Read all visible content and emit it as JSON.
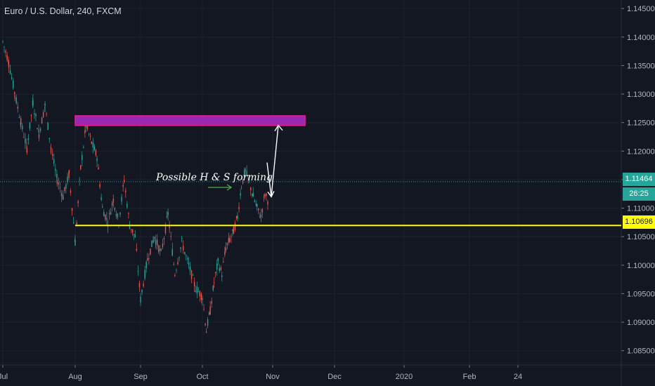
{
  "header": {
    "title": "Euro / U.S. Dollar, 240, FXCM"
  },
  "badges": {
    "current_price": "1.11464",
    "countdown": "26:25",
    "support_level": "1.10696"
  },
  "annotation": {
    "text": "Possible H & S forming"
  },
  "colors": {
    "background": "#131722",
    "grid": "#1e2230",
    "candle_up": "#26a69a",
    "candle_down": "#ef5350",
    "support_line": "#ffff00",
    "target_zone_fill": "#9c27b0",
    "target_zone_border": "#e91e8c",
    "price_line": "#26a69a",
    "arrow": "#ffffff",
    "small_arrow": "#4caf50"
  },
  "chart_data": {
    "type": "candlestick",
    "symbol": "EURUSD",
    "timeframe": "240",
    "exchange": "FXCM",
    "y_ticks": [
      "1.14500",
      "1.14000",
      "1.13500",
      "1.13000",
      "1.12500",
      "1.12000",
      "1.11500",
      "1.11000",
      "1.10500",
      "1.10000",
      "1.09500",
      "1.09000",
      "1.08500"
    ],
    "ylim": [
      1.0825,
      1.1465
    ],
    "x_ticks": [
      "Jul",
      "Aug",
      "Sep",
      "Oct",
      "Nov",
      "Dec",
      "2020",
      "Feb",
      "24"
    ],
    "price_path": [
      [
        "Jul",
        1.1392
      ],
      [
        "Jul",
        1.1355
      ],
      [
        "Jul",
        1.13
      ],
      [
        "Jul",
        1.125
      ],
      [
        "Jul",
        1.1205
      ],
      [
        "Jul",
        1.1285
      ],
      [
        "Jul",
        1.123
      ],
      [
        "Jul",
        1.128
      ],
      [
        "Jul",
        1.1205
      ],
      [
        "Jul",
        1.115
      ],
      [
        "Jul",
        1.112
      ],
      [
        "Jul",
        1.116
      ],
      [
        "Aug",
        1.104
      ],
      [
        "Aug",
        1.117
      ],
      [
        "Aug",
        1.1245
      ],
      [
        "Aug",
        1.1215
      ],
      [
        "Aug",
        1.119
      ],
      [
        "Aug",
        1.11
      ],
      [
        "Aug",
        1.1075
      ],
      [
        "Aug",
        1.1115
      ],
      [
        "Aug",
        1.1075
      ],
      [
        "Aug",
        1.115
      ],
      [
        "Aug",
        1.107
      ],
      [
        "Aug",
        1.105
      ],
      [
        "Sep",
        1.094
      ],
      [
        "Sep",
        1.101
      ],
      [
        "Sep",
        1.105
      ],
      [
        "Sep",
        1.102
      ],
      [
        "Sep",
        1.109
      ],
      [
        "Sep",
        1.0985
      ],
      [
        "Sep",
        1.104
      ],
      [
        "Sep",
        1.1
      ],
      [
        "Sep",
        1.096
      ],
      [
        "Oct",
        1.0945
      ],
      [
        "Oct",
        1.0885
      ],
      [
        "Oct",
        1.092
      ],
      [
        "Oct",
        1.097
      ],
      [
        "Oct",
        1.1005
      ],
      [
        "Oct",
        1.0985
      ],
      [
        "Oct",
        1.103
      ],
      [
        "Oct",
        1.1045
      ],
      [
        "Oct",
        1.106
      ],
      [
        "Oct",
        1.1085
      ],
      [
        "Oct",
        1.114
      ],
      [
        "Oct",
        1.1165
      ],
      [
        "Oct",
        1.1145
      ],
      [
        "Oct",
        1.112
      ],
      [
        "Oct",
        1.11
      ],
      [
        "Oct",
        1.1085
      ],
      [
        "Oct",
        1.1125
      ],
      [
        "Oct",
        1.111
      ]
    ],
    "horizontal_line": {
      "price": 1.10696,
      "label": "1.10696",
      "from": "Aug"
    },
    "current_price": 1.11464,
    "target_zone": {
      "price_top": 1.1262,
      "price_bottom": 1.1245,
      "from": "Aug",
      "to": "Dec"
    },
    "projection_arrow": {
      "from_price": 1.1115,
      "via_price": 1.118,
      "to_price": 1.125
    },
    "annotation": "Possible H & S forming"
  }
}
